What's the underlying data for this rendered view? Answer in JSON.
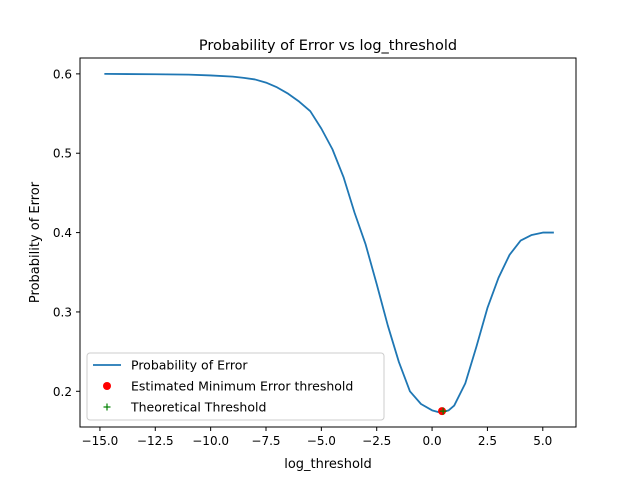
{
  "chart_data": {
    "type": "line",
    "title": "Probability of Error vs log_threshold",
    "xlabel": "log_threshold",
    "ylabel": "Probability of Error",
    "xlim": [
      -15.9,
      6.5
    ],
    "ylim": [
      0.155,
      0.62
    ],
    "xticks": [
      -15.0,
      -12.5,
      -10.0,
      -7.5,
      -5.0,
      -2.5,
      0.0,
      2.5,
      5.0
    ],
    "xtick_labels": [
      "−15.0",
      "−12.5",
      "−10.0",
      "−7.5",
      "−5.0",
      "−2.5",
      "0.0",
      "2.5",
      "5.0"
    ],
    "yticks": [
      0.2,
      0.3,
      0.4,
      0.5,
      0.6
    ],
    "ytick_labels": [
      "0.2",
      "0.3",
      "0.4",
      "0.5",
      "0.6"
    ],
    "grid": false,
    "legend": "lower-left",
    "series": [
      {
        "name": "Probability of Error",
        "color": "#1f77b4",
        "marker": "line",
        "x": [
          -14.8,
          -12.5,
          -11.0,
          -10.0,
          -9.0,
          -8.5,
          -8.0,
          -7.5,
          -7.0,
          -6.5,
          -6.0,
          -5.5,
          -5.0,
          -4.5,
          -4.0,
          -3.5,
          -3.0,
          -2.5,
          -2.0,
          -1.5,
          -1.0,
          -0.5,
          0.0,
          0.25,
          0.5,
          0.75,
          1.0,
          1.5,
          2.0,
          2.5,
          3.0,
          3.5,
          4.0,
          4.5,
          5.0,
          5.5
        ],
        "y": [
          0.6,
          0.5995,
          0.599,
          0.598,
          0.5965,
          0.595,
          0.593,
          0.589,
          0.583,
          0.575,
          0.565,
          0.553,
          0.531,
          0.505,
          0.47,
          0.425,
          0.385,
          0.335,
          0.283,
          0.237,
          0.2,
          0.184,
          0.176,
          0.174,
          0.174,
          0.176,
          0.182,
          0.21,
          0.256,
          0.305,
          0.343,
          0.372,
          0.39,
          0.397,
          0.4,
          0.4
        ]
      },
      {
        "name": "Estimated Minimum Error threshold",
        "color": "#ff0000",
        "marker": "circle",
        "x": [
          0.45
        ],
        "y": [
          0.175
        ]
      },
      {
        "name": "Theoretical Threshold",
        "color": "#008000",
        "marker": "plus",
        "x": [
          0.5
        ],
        "y": [
          0.175
        ]
      }
    ]
  }
}
